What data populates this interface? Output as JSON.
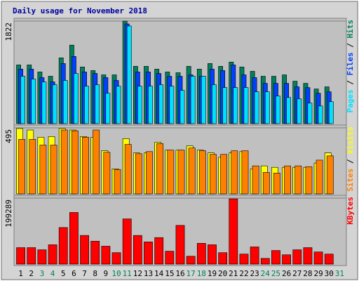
{
  "chart_data": {
    "type": "bar",
    "title": "Daily usage for November 2018",
    "title_color": "#0000a0",
    "legend_separator": " / ",
    "categories": [
      "1",
      "2",
      "3",
      "4",
      "5",
      "6",
      "7",
      "8",
      "9",
      "10",
      "11",
      "12",
      "13",
      "14",
      "15",
      "16",
      "17",
      "18",
      "19",
      "20",
      "21",
      "22",
      "23",
      "24",
      "25",
      "26",
      "27",
      "28",
      "29",
      "30",
      "31"
    ],
    "category_colors": [
      "#000000",
      "#000000",
      "#00805c",
      "#00805c",
      "#000000",
      "#000000",
      "#000000",
      "#000000",
      "#000000",
      "#00805c",
      "#00805c",
      "#000000",
      "#000000",
      "#000000",
      "#000000",
      "#000000",
      "#00805c",
      "#00805c",
      "#000000",
      "#000000",
      "#000000",
      "#000000",
      "#000000",
      "#00805c",
      "#00805c",
      "#000000",
      "#000000",
      "#000000",
      "#000000",
      "#000000",
      "#00805c"
    ],
    "panels": [
      {
        "ylim": [
          0,
          1822
        ],
        "yticks": [
          1822
        ],
        "series": [
          {
            "name": "Hits",
            "color": "#00805c",
            "values": [
              1043,
              1043,
              918,
              842,
              1169,
              1395,
              1006,
              943,
              867,
              867,
              1822,
              1018,
              1018,
              968,
              918,
              905,
              1018,
              968,
              1068,
              1018,
              1094,
              1006,
              930,
              842,
              842,
              867,
              754,
              716,
              616,
              654,
              null
            ]
          },
          {
            "name": "Files",
            "color": "#0040ff",
            "values": [
              968,
              968,
              817,
              742,
              1068,
              1194,
              918,
              892,
              817,
              767,
              1772,
              918,
              918,
              892,
              842,
              842,
              867,
              842,
              968,
              943,
              1043,
              867,
              817,
              716,
              716,
              716,
              654,
              641,
              540,
              566,
              null
            ]
          },
          {
            "name": "Pages",
            "color": "#00e0ff",
            "values": [
              842,
              792,
              742,
              691,
              767,
              892,
              666,
              691,
              540,
              666,
              1735,
              666,
              666,
              691,
              666,
              591,
              842,
              842,
              691,
              641,
              641,
              641,
              566,
              566,
              490,
              465,
              440,
              365,
              314,
              390,
              null
            ]
          }
        ]
      },
      {
        "ylim": [
          0,
          495
        ],
        "yticks": [
          495
        ],
        "series": [
          {
            "name": "Visits",
            "color": "#ffff00",
            "values": [
              490,
              479,
              425,
              430,
              490,
              479,
              430,
              425,
              323,
              188,
              414,
              307,
              307,
              387,
              328,
              328,
              360,
              328,
              307,
              274,
              307,
              317,
              188,
              210,
              199,
              199,
              199,
              199,
              231,
              307,
              null
            ]
          },
          {
            "name": "Sites",
            "color": "#ff8000",
            "values": [
              409,
              409,
              366,
              366,
              479,
              473,
              425,
              479,
              312,
              183,
              371,
              301,
              317,
              377,
              328,
              328,
              344,
              323,
              296,
              296,
              323,
              323,
              210,
              161,
              156,
              210,
              210,
              204,
              253,
              285,
              null
            ]
          }
        ]
      },
      {
        "ylim": [
          0,
          199289
        ],
        "yticks": [
          199289
        ],
        "series": [
          {
            "name": "KBytes",
            "color": "#ff0000",
            "values": [
              49818,
              49818,
              43320,
              58482,
              110466,
              155952,
              86640,
              69312,
              54150,
              34656,
              136458,
              86640,
              67146,
              80142,
              38988,
              116964,
              23826,
              62814,
              58482,
              34656,
              197106,
              30324,
              51984,
              17328,
              41154,
              28158,
              43320,
              49818,
              36822,
              30324,
              null
            ]
          }
        ]
      }
    ]
  }
}
